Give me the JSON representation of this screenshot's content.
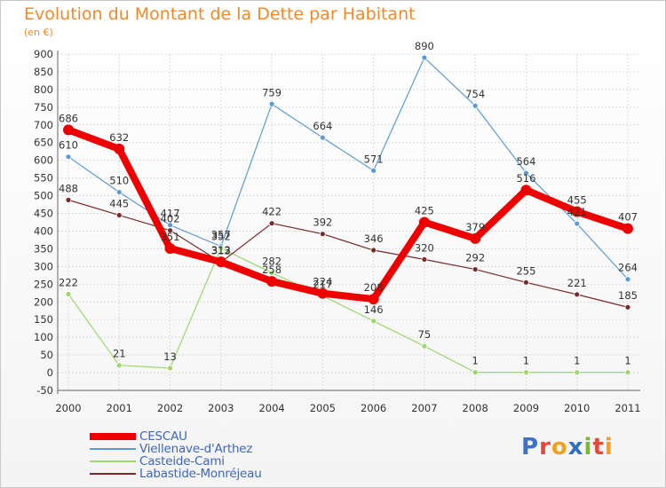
{
  "header": {
    "title": "Evolution du Montant de la Dette par Habitant",
    "unit": "(en €)"
  },
  "logo": {
    "text": "Proxiti",
    "letters": [
      {
        "ch": "P",
        "color": "#3a73c8"
      },
      {
        "ch": "r",
        "color": "#e24a3b"
      },
      {
        "ch": "o",
        "color": "#f2a01f"
      },
      {
        "ch": "x",
        "color": "#2e6fc0"
      },
      {
        "ch": "i",
        "color": "#78b833"
      },
      {
        "ch": "t",
        "color": "#e24a3b"
      },
      {
        "ch": "i",
        "color": "#f2a01f"
      }
    ]
  },
  "chart_data": {
    "type": "line",
    "title": "Evolution du Montant de la Dette par Habitant",
    "ylabel": "(en €)",
    "xlabel": "",
    "ylim": [
      -50,
      900
    ],
    "yticks": [
      -50,
      0,
      50,
      100,
      150,
      200,
      250,
      300,
      350,
      400,
      450,
      500,
      550,
      600,
      650,
      700,
      750,
      800,
      850,
      900
    ],
    "x": [
      "2000",
      "2001",
      "2002",
      "2003",
      "2004",
      "2005",
      "2006",
      "2007",
      "2008",
      "2009",
      "2010",
      "2011"
    ],
    "grid": true,
    "legend": "bottom-left",
    "series": [
      {
        "name": "Viellenave-d'Arthez",
        "color": "#5b9bd5",
        "values": [
          610,
          510,
          417,
          357,
          759,
          664,
          571,
          890,
          754,
          564,
          421,
          264
        ],
        "labels": [
          "610",
          "510",
          "417",
          "357",
          "759",
          "664",
          "571",
          "890",
          "754",
          "564",
          "421",
          "264"
        ]
      },
      {
        "name": "Casteide-Cami",
        "color": "#9ad86b",
        "values": [
          222,
          21,
          13,
          352,
          282,
          217,
          146,
          75,
          1,
          1,
          1,
          1
        ],
        "labels": [
          "222",
          "21",
          "13",
          "352",
          "282",
          "217",
          "146",
          "75",
          "1",
          "1",
          "1",
          "1"
        ]
      },
      {
        "name": "Labastide-Monréjeau",
        "color": "#7a2a2a",
        "values": [
          488,
          445,
          402,
          312,
          422,
          392,
          346,
          320,
          292,
          255,
          221,
          185
        ],
        "labels": [
          "488",
          "445",
          "402",
          "312",
          "422",
          "392",
          "346",
          "320",
          "292",
          "255",
          "221",
          "185"
        ]
      },
      {
        "name": "CESCAU",
        "color": "#ee0000",
        "values": [
          686,
          632,
          351,
          313,
          258,
          224,
          208,
          425,
          379,
          516,
          455,
          407
        ],
        "labels": [
          "686",
          "632",
          "351",
          "313",
          "258",
          "224",
          "208",
          "425",
          "379",
          "516",
          "455",
          "407"
        ]
      }
    ]
  }
}
